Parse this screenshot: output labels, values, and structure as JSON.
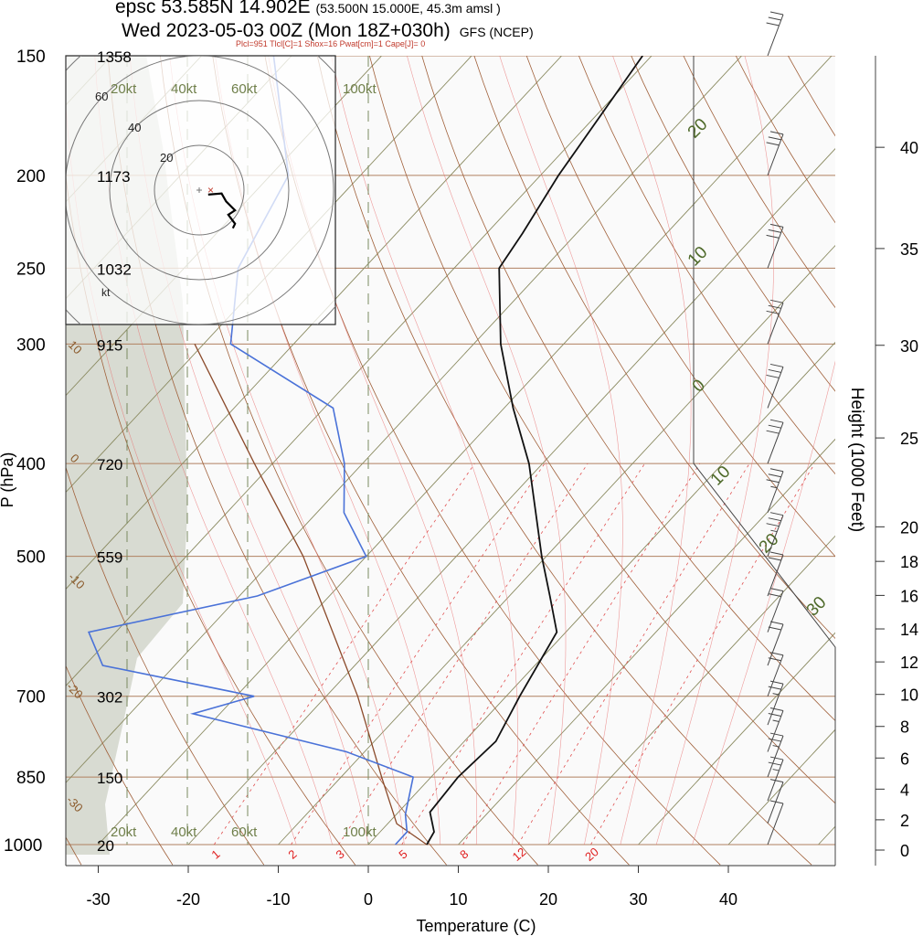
{
  "header": {
    "station": "epsc 53.585N 14.902E",
    "gridpoint": "(53.500N 15.000E,  45.3m amsl )",
    "run": "Wed 2023-05-03 00Z (Mon 18Z+030h)",
    "model": "GFS (NCEP)",
    "indices": "Plcl=951 Tlcl[C]=1 Shox=16 Pwat[cm]=1 Cape[J]= 0"
  },
  "axes": {
    "xlabel": "Temperature (C)",
    "ylabel": "P (hPa)",
    "y2label": "Height (1000 Feet)",
    "xticks": [
      "-30",
      "-20",
      "-10",
      "0",
      "10",
      "20",
      "30",
      "40"
    ],
    "pressure_levels": [
      "150",
      "200",
      "250",
      "300",
      "400",
      "500",
      "700",
      "850",
      "1000"
    ],
    "heights_m": [
      "1358",
      "1173",
      "1032",
      "915",
      "720",
      "559",
      "302",
      "150",
      "20"
    ],
    "height_ticks": [
      "40",
      "35",
      "30",
      "25",
      "20",
      "18",
      "16",
      "14",
      "12",
      "10",
      "8",
      "6",
      "4",
      "2",
      "0"
    ]
  },
  "isotherm_labels": {
    "left": [
      "10",
      "0",
      "-10",
      "-20",
      "-30"
    ],
    "right": [
      "20",
      "10",
      "0",
      "10",
      "20",
      "30"
    ]
  },
  "mixing_ratio_labels": [
    "1",
    "2",
    "3",
    "5",
    "8",
    "12",
    "20"
  ],
  "hodograph": {
    "speed_labels_top": [
      "20kt",
      "40kt",
      "60kt",
      "100kt"
    ],
    "speed_labels_bottom": [
      "20kt",
      "40kt",
      "60kt",
      "100kt"
    ],
    "ring_labels": [
      "20",
      "40",
      "60"
    ],
    "unit": "kt"
  },
  "colors": {
    "temperature": "#111111",
    "dewpoint": "#4a72d8",
    "parcel": "#8b4a2a",
    "isobar": "#b08060",
    "isotherm": "#8a8a60",
    "dry_adiabat": "#a0603a",
    "moist_adiabat": "#e87070",
    "mixing_ratio": "#e05050",
    "ice_shading": "#d8dbd2"
  },
  "chart_data": {
    "type": "skew-t",
    "x_units": "C",
    "y_units": "hPa",
    "xlim": [
      -33,
      46
    ],
    "ylim": [
      1000,
      150
    ],
    "temperature": [
      {
        "p": 1000,
        "t": 6.5
      },
      {
        "p": 970,
        "t": 6.0
      },
      {
        "p": 925,
        "t": 3.5
      },
      {
        "p": 850,
        "t": 3.0
      },
      {
        "p": 780,
        "t": 3.5
      },
      {
        "p": 700,
        "t": 1.5
      },
      {
        "p": 600,
        "t": -1.0
      },
      {
        "p": 550,
        "t": -5.5
      },
      {
        "p": 500,
        "t": -10.5
      },
      {
        "p": 400,
        "t": -21.5
      },
      {
        "p": 350,
        "t": -29.0
      },
      {
        "p": 300,
        "t": -37.0
      },
      {
        "p": 250,
        "t": -45.0
      },
      {
        "p": 230,
        "t": -46.0
      },
      {
        "p": 200,
        "t": -48.0
      },
      {
        "p": 150,
        "t": -51.0
      }
    ],
    "dewpoint": [
      {
        "p": 1000,
        "t": 3.0
      },
      {
        "p": 970,
        "t": 3.0
      },
      {
        "p": 930,
        "t": 1.0
      },
      {
        "p": 850,
        "t": -2.0
      },
      {
        "p": 800,
        "t": -12.0
      },
      {
        "p": 730,
        "t": -33.0
      },
      {
        "p": 700,
        "t": -28.0
      },
      {
        "p": 650,
        "t": -48.0
      },
      {
        "p": 600,
        "t": -53.0
      },
      {
        "p": 550,
        "t": -38.0
      },
      {
        "p": 500,
        "t": -30.0
      },
      {
        "p": 450,
        "t": -37.0
      },
      {
        "p": 400,
        "t": -42.0
      },
      {
        "p": 350,
        "t": -49.0
      },
      {
        "p": 300,
        "t": -67.0
      },
      {
        "p": 250,
        "t": -74.0
      },
      {
        "p": 200,
        "t": -78.0
      },
      {
        "p": 150,
        "t": -92.0
      }
    ],
    "parcel": [
      {
        "p": 1000,
        "t": 6.5
      },
      {
        "p": 951,
        "t": 1.0
      },
      {
        "p": 850,
        "t": -5.5
      },
      {
        "p": 700,
        "t": -16.5
      },
      {
        "p": 500,
        "t": -37.0
      },
      {
        "p": 400,
        "t": -52.0
      },
      {
        "p": 300,
        "t": -71.0
      }
    ],
    "hodograph_trace": [
      {
        "u": 4,
        "v": -2
      },
      {
        "u": 10,
        "v": -1.5
      },
      {
        "u": 12,
        "v": -5
      },
      {
        "u": 16,
        "v": -9
      },
      {
        "u": 13,
        "v": -11
      },
      {
        "u": 16,
        "v": -15
      },
      {
        "u": 15,
        "v": -17
      }
    ],
    "wind_barbs": [
      {
        "p": 150,
        "speed_kt": 30
      },
      {
        "p": 200,
        "speed_kt": 30
      },
      {
        "p": 250,
        "speed_kt": 30
      },
      {
        "p": 300,
        "speed_kt": 30
      },
      {
        "p": 350,
        "speed_kt": 30
      },
      {
        "p": 400,
        "speed_kt": 30
      },
      {
        "p": 450,
        "speed_kt": 25
      },
      {
        "p": 500,
        "speed_kt": 25
      },
      {
        "p": 550,
        "speed_kt": 20
      },
      {
        "p": 600,
        "speed_kt": 20
      },
      {
        "p": 650,
        "speed_kt": 20
      },
      {
        "p": 700,
        "speed_kt": 20
      },
      {
        "p": 750,
        "speed_kt": 15
      },
      {
        "p": 800,
        "speed_kt": 15
      },
      {
        "p": 850,
        "speed_kt": 15
      },
      {
        "p": 900,
        "speed_kt": 15
      },
      {
        "p": 950,
        "speed_kt": 10
      },
      {
        "p": 1000,
        "speed_kt": 10
      }
    ]
  }
}
